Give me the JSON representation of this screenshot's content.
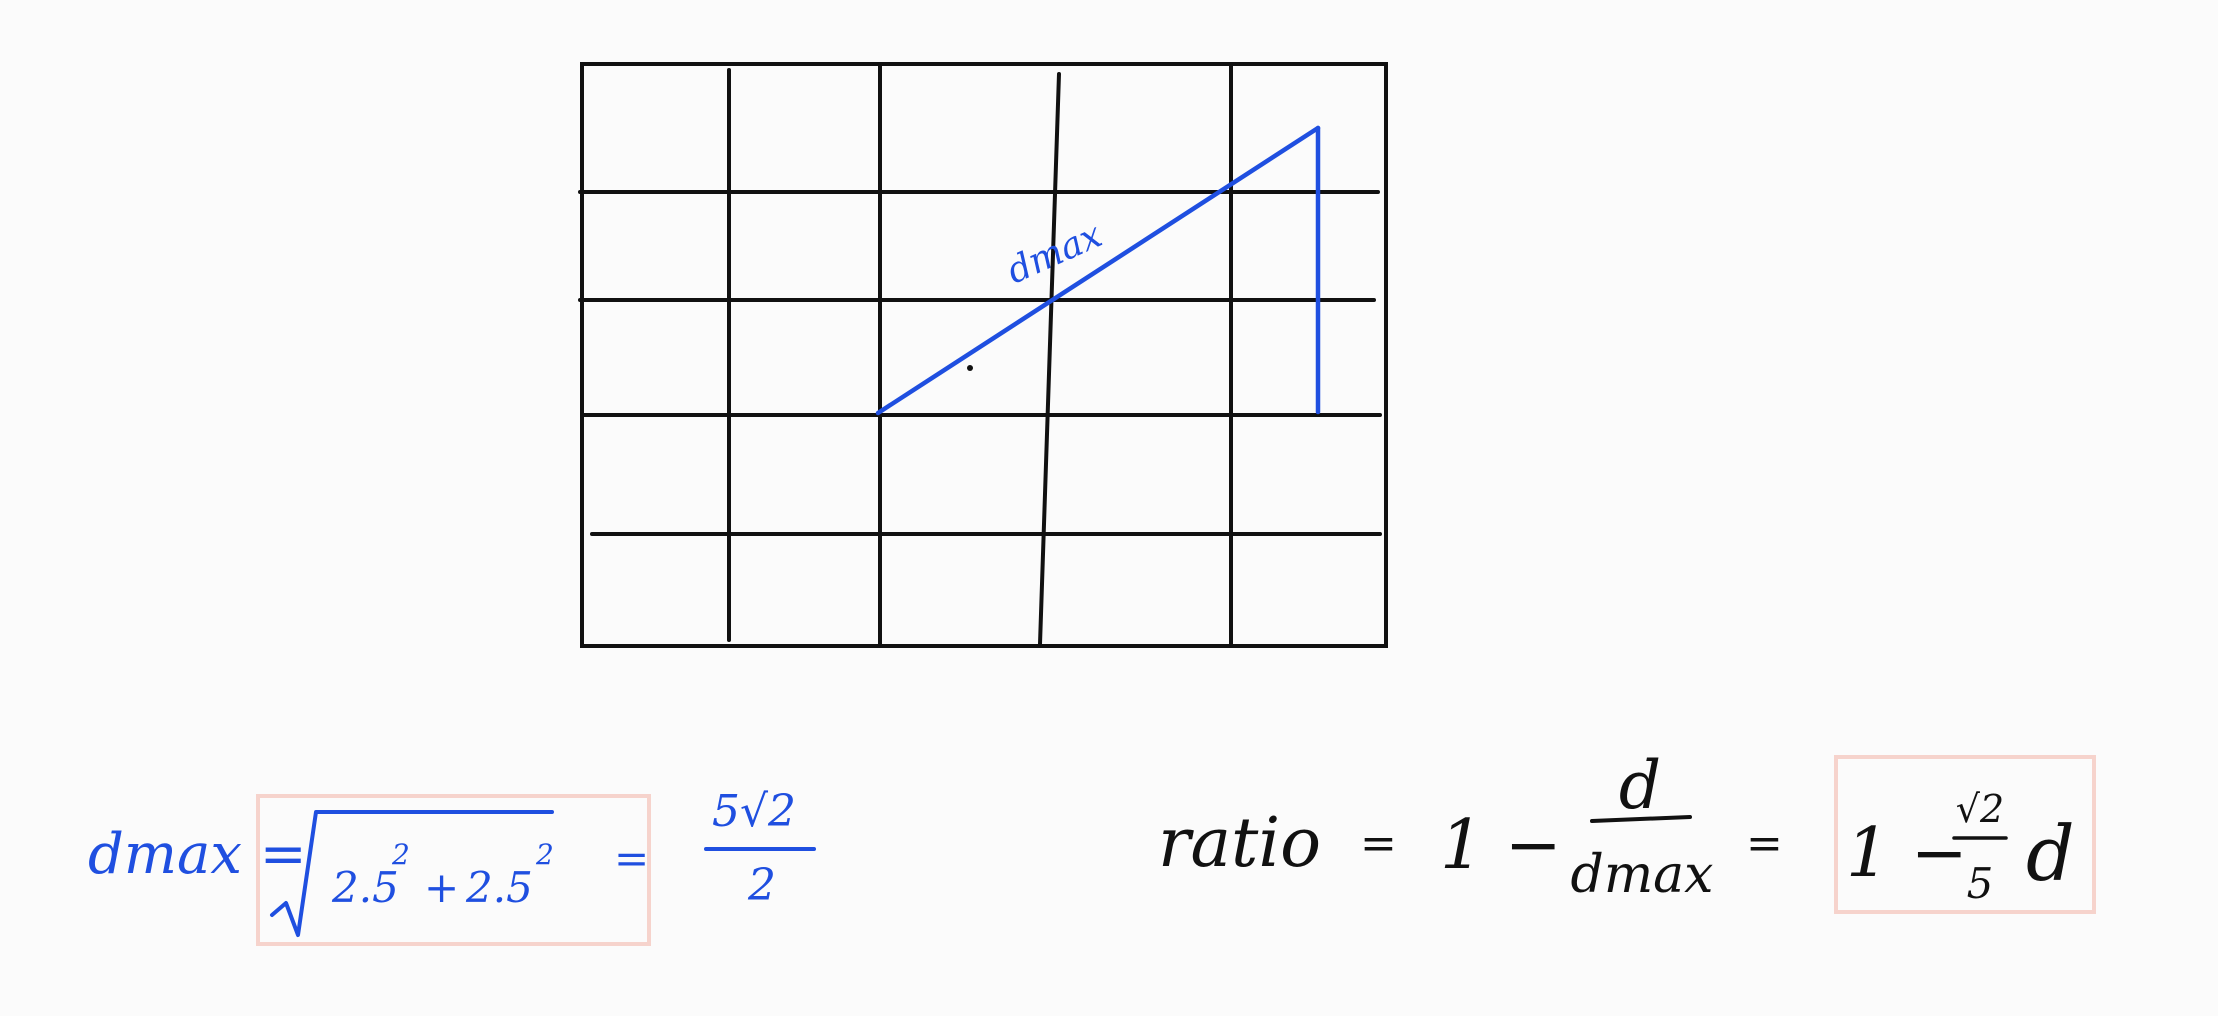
{
  "colors": {
    "ink": "#111111",
    "blue": "#1f4fe0",
    "box": "#f6d3cc",
    "background": "#fbfbfb"
  },
  "diagram": {
    "segment_label": "dmax"
  },
  "formula_left": {
    "lhs": "dmax =",
    "radicand_a": "2.5",
    "radicand_op": "+",
    "radicand_b": "2.5",
    "exponent": "2",
    "equals": "=",
    "result_numerator": "5√2",
    "result_denominator": "2"
  },
  "formula_right": {
    "lhs": "ratio",
    "equals": "=",
    "one_minus": "1 −",
    "frac_numerator": "d",
    "frac_denominator": "dmax",
    "equals2": "=",
    "result_one_minus": "1 −",
    "result_coef_numerator": "√2",
    "result_coef_denominator": "5",
    "result_variable": "d"
  }
}
